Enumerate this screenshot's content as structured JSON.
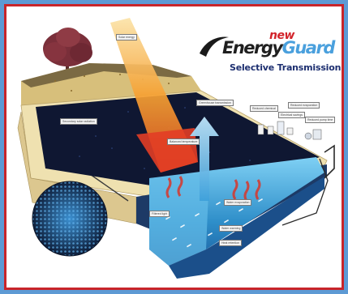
{
  "brand": {
    "new": "new",
    "name_part1": "Energy",
    "name_part2": "Guard",
    "tagline": "Selective Transmission"
  },
  "callouts": [
    "Solar energy",
    "Secondary solar radiation",
    "Greenhouse transmission",
    "Balanced temperature",
    "Filtered light",
    "Water evaporation",
    "Water warming",
    "Heat retention",
    "Reduced chemical",
    "Reduced evaporation",
    "Electrical savings",
    "Reduced pump time"
  ],
  "colors": {
    "background": "#5d9ad4",
    "frame_border": "#c8252a",
    "cover": "#0f1732",
    "water": "#2e8ec9",
    "deck": "#e8d7a3",
    "sun_ray": "#f08a1c",
    "heat": "#d8362b",
    "logo_red": "#d2232a",
    "logo_blue": "#4aa0dd"
  }
}
